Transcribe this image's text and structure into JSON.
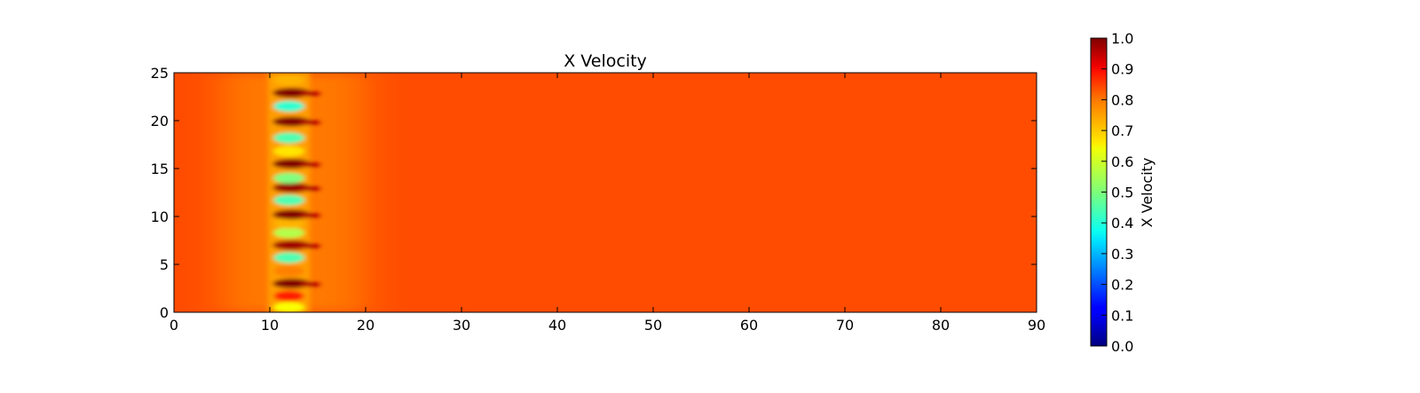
{
  "chart_data": {
    "type": "heatmap",
    "title": "X Velocity",
    "xlabel": "",
    "ylabel": "",
    "xlim": [
      0,
      90
    ],
    "ylim": [
      0,
      25
    ],
    "xticks": [
      "0",
      "10",
      "20",
      "30",
      "40",
      "50",
      "60",
      "70",
      "80",
      "90"
    ],
    "yticks": [
      "0",
      "5",
      "10",
      "15",
      "20",
      "25"
    ],
    "colormap": "jet",
    "background_value": 0.8,
    "colorbar": {
      "label": "X Velocity",
      "range": [
        0.0,
        1.0
      ],
      "ticks": [
        "0.0",
        "0.1",
        "0.2",
        "0.3",
        "0.4",
        "0.5",
        "0.6",
        "0.7",
        "0.8",
        "0.9",
        "1.0"
      ]
    },
    "disturbance": {
      "x_center": 12,
      "bands": [
        {
          "y": 0.5,
          "value": 0.62
        },
        {
          "y": 1.7,
          "value": 0.85
        },
        {
          "y": 3.0,
          "value": 1.0
        },
        {
          "y": 4.3,
          "value": 0.75
        },
        {
          "y": 5.7,
          "value": 0.45
        },
        {
          "y": 7.0,
          "value": 0.97
        },
        {
          "y": 8.3,
          "value": 0.55
        },
        {
          "y": 9.3,
          "value": 0.7
        },
        {
          "y": 10.2,
          "value": 1.0
        },
        {
          "y": 11.7,
          "value": 0.45
        },
        {
          "y": 13.0,
          "value": 0.98
        },
        {
          "y": 14.0,
          "value": 0.5
        },
        {
          "y": 15.5,
          "value": 1.0
        },
        {
          "y": 16.8,
          "value": 0.65
        },
        {
          "y": 18.2,
          "value": 0.45
        },
        {
          "y": 19.9,
          "value": 1.0
        },
        {
          "y": 21.5,
          "value": 0.42
        },
        {
          "y": 22.9,
          "value": 1.0
        },
        {
          "y": 24.2,
          "value": 0.7
        }
      ]
    }
  }
}
